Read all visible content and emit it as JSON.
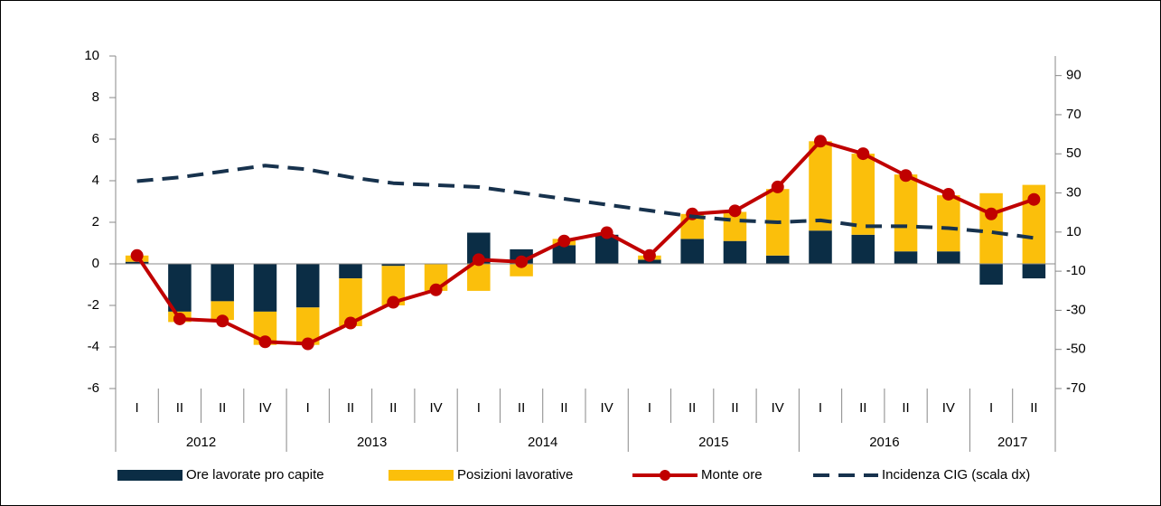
{
  "chart_data": {
    "type": "combo",
    "groups": [
      {
        "name": "2012",
        "categories": [
          "I",
          "II",
          "II",
          "IV"
        ]
      },
      {
        "name": "2013",
        "categories": [
          "I",
          "II",
          "II",
          "IV"
        ]
      },
      {
        "name": "2014",
        "categories": [
          "I",
          "II",
          "II",
          "IV"
        ]
      },
      {
        "name": "2015",
        "categories": [
          "I",
          "II",
          "II",
          "IV"
        ]
      },
      {
        "name": "2016",
        "categories": [
          "I",
          "II",
          "II",
          "IV"
        ]
      },
      {
        "name": "2017",
        "categories": [
          "I",
          "II"
        ]
      }
    ],
    "stacked": true,
    "series": [
      {
        "name": "Ore lavorate pro capite",
        "type": "bar",
        "color": "#0b2d45",
        "values": [
          0.1,
          -2.3,
          -1.8,
          -2.3,
          -2.1,
          -0.7,
          -0.1,
          0,
          1.5,
          0.7,
          0.9,
          1.4,
          0.2,
          1.2,
          1.1,
          0.4,
          1.6,
          1.4,
          0.6,
          0.6,
          -1.0,
          -0.7
        ]
      },
      {
        "name": "Posizioni lavorative",
        "type": "bar",
        "color": "#fbbf0b",
        "values": [
          0.3,
          -0.5,
          -0.9,
          -1.6,
          -1.8,
          -2.3,
          -1.9,
          -1.3,
          -1.3,
          -0.6,
          0.3,
          0,
          0.2,
          1.2,
          1.4,
          3.2,
          4.3,
          3.9,
          3.7,
          2.7,
          3.4,
          3.8
        ]
      },
      {
        "name": "Monte ore",
        "type": "line",
        "marker": true,
        "color": "#c00000",
        "values": [
          0.4,
          -2.65,
          -2.75,
          -3.75,
          -3.85,
          -2.85,
          -1.85,
          -1.25,
          0.2,
          0.1,
          1.1,
          1.5,
          0.4,
          2.4,
          2.55,
          3.7,
          5.9,
          5.3,
          4.25,
          3.35,
          2.4,
          3.1
        ]
      },
      {
        "name": "Incidenza CIG (scala dx)",
        "type": "line",
        "dashed": true,
        "axis": "y2",
        "color": "#17324d",
        "values": [
          36,
          38,
          41,
          44,
          42,
          38,
          35,
          34,
          33,
          30,
          27,
          24,
          21,
          18,
          16,
          15,
          16,
          13,
          13,
          12,
          10,
          7
        ]
      }
    ],
    "ylim": [
      -6,
      10
    ],
    "yticks": [
      -6,
      -4,
      -2,
      0,
      2,
      4,
      6,
      8,
      10
    ],
    "y2lim": [
      -70,
      100
    ],
    "y2ticks": [
      -70,
      -50,
      -30,
      -10,
      10,
      30,
      50,
      70,
      90
    ],
    "legend": "bottom"
  }
}
